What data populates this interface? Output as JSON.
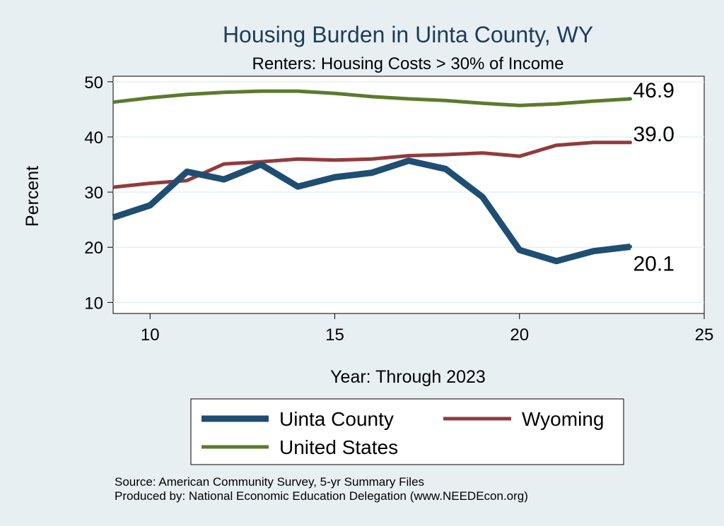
{
  "chart_data": {
    "type": "line",
    "title": "Housing Burden in Uinta County, WY",
    "subtitle": "Renters: Housing Costs > 30% of Income",
    "xlabel": "Year: Through 2023",
    "ylabel": "Percent",
    "xlim": [
      9,
      25
    ],
    "ylim": [
      8,
      51
    ],
    "xticks": [
      10,
      15,
      20,
      25
    ],
    "yticks": [
      10,
      20,
      30,
      40,
      50
    ],
    "grid": true,
    "x": [
      9,
      10,
      11,
      12,
      13,
      14,
      15,
      16,
      17,
      18,
      19,
      20,
      21,
      22,
      23
    ],
    "series": [
      {
        "name": "Uinta County",
        "color": "#1f4e72",
        "end_label": "20.1",
        "values": [
          25.4,
          27.6,
          33.7,
          32.3,
          35.0,
          31.0,
          32.7,
          33.5,
          35.7,
          34.2,
          29.1,
          19.5,
          17.5,
          19.3,
          20.1
        ]
      },
      {
        "name": "Wyoming",
        "color": "#913b3d",
        "end_label": "39.0",
        "values": [
          30.9,
          31.6,
          32.1,
          35.1,
          35.5,
          36.0,
          35.8,
          36.0,
          36.6,
          36.8,
          37.1,
          36.5,
          38.5,
          39.0,
          39.0
        ]
      },
      {
        "name": "United States",
        "color": "#5b7b2c",
        "end_label": "46.9",
        "values": [
          46.3,
          47.1,
          47.7,
          48.1,
          48.3,
          48.3,
          47.9,
          47.3,
          46.9,
          46.6,
          46.1,
          45.7,
          46.0,
          46.5,
          46.9
        ]
      }
    ],
    "legend": [
      "Uinta County",
      "Wyoming",
      "United States"
    ],
    "notes": [
      "Source: American Community Survey, 5-yr Summary Files",
      "Produced by: National Economic Education Delegation (www.NEEDEcon.org)"
    ]
  }
}
